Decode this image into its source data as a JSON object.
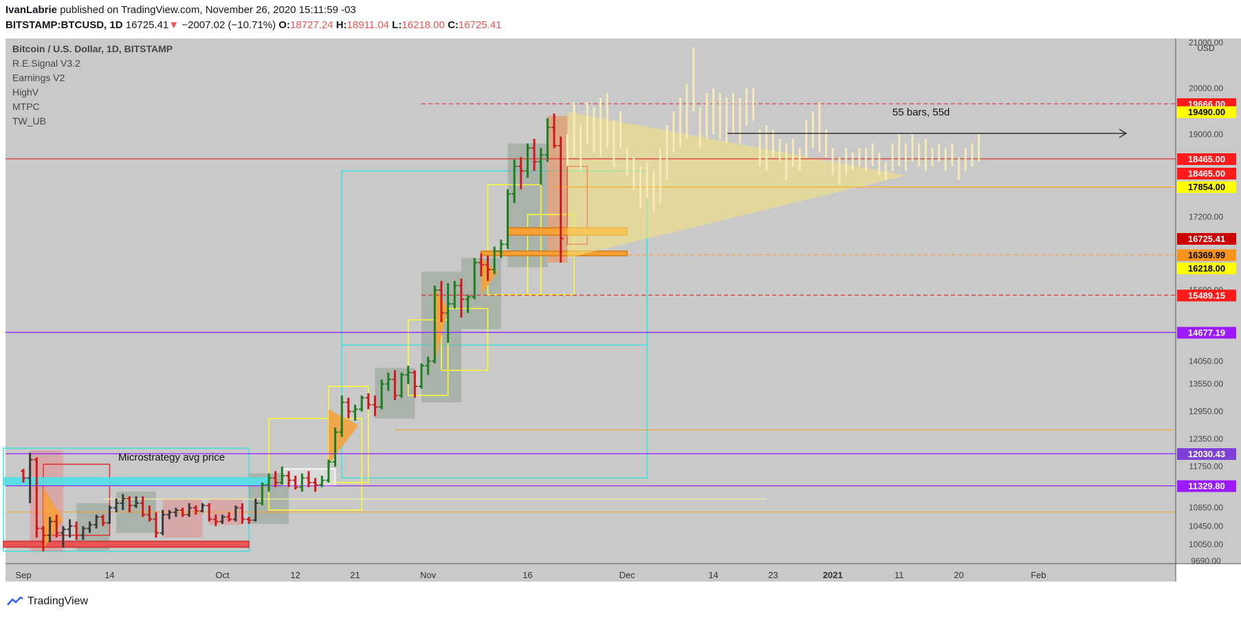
{
  "header": {
    "author": "IvanLabrie",
    "published_text": "published on TradingView.com, November 26, 2020 15:11:59 -03",
    "symbol": "BITSTAMP:BTCUSD, 1D",
    "last": "16725.41",
    "down_arrow": "▼",
    "change": "−2007.02 (−10.71%)",
    "o_label": "O:",
    "o": "18727.24",
    "h_label": "H:",
    "h": "18911.04",
    "l_label": "L:",
    "l": "16218.00",
    "c_label": "C:",
    "c": "16725.41"
  },
  "legend": {
    "title": "Bitcoin / U.S. Dollar, 1D, BITSTAMP",
    "indicators": [
      "R.E.Signal V3.2",
      "Earnings V2",
      "HighV",
      "MTPC",
      "TW_UB"
    ]
  },
  "annotations": {
    "microstrategy": "Microstrategy avg price",
    "projection": "55 bars, 55d"
  },
  "footer": {
    "brand": "TradingView"
  },
  "colors": {
    "background": "#c9c9c9",
    "up": "#1e7d1e",
    "down": "#cc1a1a",
    "neutral": "#3a3a3a",
    "cyan": "#3fe0e0",
    "yellow": "#ffff33",
    "orange": "#f7a035",
    "purple": "#8c1aff",
    "red_line": "#e03030"
  },
  "chart_data": {
    "type": "bar",
    "title": "Bitcoin / U.S. Dollar, 1D, BITSTAMP",
    "currency": "USD",
    "ylim": [
      9690,
      21000
    ],
    "y_ticks": [
      21000,
      20000,
      19000,
      17200,
      15600,
      14050,
      13550,
      12950,
      12350,
      11750,
      10850,
      10450,
      10050,
      9690
    ],
    "y_tick_labels": [
      "21000.00",
      "20000.00",
      "19000.00",
      "17200.00",
      "15600.00",
      "14050.00",
      "13550.00",
      "12950.00",
      "12350.00",
      "11750.00",
      "10850.00",
      "10450.00",
      "10050.00",
      "9690.00"
    ],
    "x_ticks": [
      {
        "label": "Sep",
        "bar": 0
      },
      {
        "label": "14",
        "bar": 13
      },
      {
        "label": "Oct",
        "bar": 30
      },
      {
        "label": "12",
        "bar": 41
      },
      {
        "label": "21",
        "bar": 50
      },
      {
        "label": "Nov",
        "bar": 61
      },
      {
        "label": "16",
        "bar": 76
      },
      {
        "label": "Dec",
        "bar": 91
      },
      {
        "label": "14",
        "bar": 104
      },
      {
        "label": "23",
        "bar": 113
      },
      {
        "label": "2021",
        "bar": 122
      },
      {
        "label": "11",
        "bar": 132
      },
      {
        "label": "20",
        "bar": 141
      },
      {
        "label": "Feb",
        "bar": 153
      }
    ],
    "price_labels": [
      {
        "value": "19666.00",
        "price": 19666,
        "bg": "#ff1a1a",
        "fg": "#ffffff"
      },
      {
        "value": "19490.00",
        "price": 19490,
        "bg": "#ffff00",
        "fg": "#000000"
      },
      {
        "value": "18465.00",
        "price": 18465,
        "bg": "#ff1a1a",
        "fg": "#ffffff"
      },
      {
        "value": "18465.00",
        "price": 18150,
        "bg": "#ff1a1a",
        "fg": "#ffffff"
      },
      {
        "value": "17854.00",
        "price": 17854,
        "bg": "#ffff00",
        "fg": "#000000"
      },
      {
        "value": "16725.41",
        "price": 16725,
        "bg": "#cc0000",
        "fg": "#ffffff"
      },
      {
        "value": "16369.99",
        "price": 16370,
        "bg": "#f7941d",
        "fg": "#000000"
      },
      {
        "value": "16218.00",
        "price": 16080,
        "bg": "#ffff00",
        "fg": "#000000"
      },
      {
        "value": "15489.15",
        "price": 15489,
        "bg": "#ff1a1a",
        "fg": "#ffffff"
      },
      {
        "value": "14677.19",
        "price": 14677,
        "bg": "#9b1aff",
        "fg": "#ffffff"
      },
      {
        "value": "12030.43",
        "price": 12030,
        "bg": "#7e3fd6",
        "fg": "#ffffff"
      },
      {
        "value": "11329.80",
        "price": 11330,
        "bg": "#9b1aff",
        "fg": "#ffffff"
      }
    ],
    "hlines": [
      {
        "price": 19666,
        "color": "#e03030",
        "dash": true,
        "from": 60
      },
      {
        "price": 18465,
        "color": "#e03030",
        "dash": false,
        "from": 0
      },
      {
        "price": 17854,
        "color": "#ffff33",
        "dash": false,
        "from": 80
      },
      {
        "price": 16369.99,
        "color": "#f7a035",
        "dash": true,
        "from": 86
      },
      {
        "price": 15489.15,
        "color": "#e03030",
        "dash": true,
        "from": 60
      },
      {
        "price": 14677.19,
        "color": "#8c1aff",
        "dash": false,
        "from": 0
      },
      {
        "price": 12030.43,
        "color": "#8c1aff",
        "dash": false,
        "from": 0
      },
      {
        "price": 11329.8,
        "color": "#8c1aff",
        "dash": false,
        "from": 0
      },
      {
        "price": 12550,
        "color": "#f7a035",
        "dash": false,
        "from": 56
      },
      {
        "price": 10760,
        "color": "#f7a035",
        "dash": false,
        "from": 0
      }
    ],
    "ohlc": [
      [
        11650,
        11700,
        11400,
        11500
      ],
      [
        11500,
        12050,
        10950,
        11900
      ],
      [
        11900,
        11950,
        10200,
        10400
      ],
      [
        10400,
        10450,
        9900,
        10250
      ],
      [
        10250,
        10650,
        10100,
        10550
      ],
      [
        10550,
        10700,
        10200,
        10300
      ],
      [
        10300,
        10450,
        9980,
        10380
      ],
      [
        10380,
        10600,
        10200,
        10450
      ],
      [
        10450,
        10550,
        10150,
        10250
      ],
      [
        10250,
        10450,
        10150,
        10400
      ],
      [
        10400,
        10550,
        10300,
        10480
      ],
      [
        10480,
        10700,
        10400,
        10650
      ],
      [
        10650,
        10700,
        10450,
        10520
      ],
      [
        10520,
        10900,
        10500,
        10850
      ],
      [
        10850,
        11050,
        10750,
        10950
      ],
      [
        10950,
        11150,
        10800,
        11050
      ],
      [
        11050,
        11100,
        10750,
        10900
      ],
      [
        10900,
        11100,
        10850,
        10950
      ],
      [
        10950,
        11100,
        10650,
        10700
      ],
      [
        10700,
        10900,
        10550,
        10600
      ],
      [
        10600,
        10750,
        10200,
        10300
      ],
      [
        10300,
        10800,
        10250,
        10700
      ],
      [
        10700,
        10800,
        10600,
        10750
      ],
      [
        10750,
        10850,
        10650,
        10800
      ],
      [
        10800,
        10850,
        10650,
        10700
      ],
      [
        10700,
        10950,
        10650,
        10850
      ],
      [
        10850,
        10900,
        10700,
        10780
      ],
      [
        10780,
        10950,
        10750,
        10900
      ],
      [
        10900,
        10950,
        10550,
        10600
      ],
      [
        10600,
        10700,
        10450,
        10550
      ],
      [
        10550,
        10700,
        10500,
        10650
      ],
      [
        10650,
        10750,
        10550,
        10600
      ],
      [
        10600,
        10900,
        10550,
        10850
      ],
      [
        10850,
        10950,
        10500,
        10600
      ],
      [
        10600,
        10650,
        10500,
        10580
      ],
      [
        10580,
        11050,
        10550,
        10950
      ],
      [
        10950,
        11400,
        10900,
        11350
      ],
      [
        11350,
        11600,
        11200,
        11500
      ],
      [
        11500,
        11650,
        11300,
        11400
      ],
      [
        11400,
        11750,
        11350,
        11550
      ],
      [
        11550,
        11650,
        11300,
        11450
      ],
      [
        11450,
        11550,
        11250,
        11300
      ],
      [
        11300,
        11600,
        11200,
        11500
      ],
      [
        11500,
        11650,
        11300,
        11400
      ],
      [
        11400,
        11500,
        11200,
        11350
      ],
      [
        11350,
        11550,
        11300,
        11450
      ],
      [
        11450,
        11900,
        11400,
        11850
      ],
      [
        11850,
        12600,
        11750,
        12500
      ],
      [
        12500,
        13300,
        12400,
        13150
      ],
      [
        13150,
        13250,
        12800,
        12950
      ],
      [
        12950,
        13100,
        12750,
        13000
      ],
      [
        13000,
        13300,
        12950,
        13250
      ],
      [
        13250,
        13350,
        13000,
        13100
      ],
      [
        13100,
        13300,
        12850,
        13050
      ],
      [
        13050,
        13650,
        13000,
        13550
      ],
      [
        13550,
        13800,
        13400,
        13650
      ],
      [
        13650,
        13850,
        13200,
        13300
      ],
      [
        13300,
        13800,
        13250,
        13750
      ],
      [
        13750,
        13950,
        13550,
        13800
      ],
      [
        13800,
        13850,
        13250,
        13500
      ],
      [
        13500,
        14000,
        13450,
        13950
      ],
      [
        13950,
        14150,
        13750,
        14050
      ],
      [
        14050,
        15700,
        14000,
        15600
      ],
      [
        15600,
        15800,
        14900,
        15100
      ],
      [
        15100,
        15750,
        14450,
        15300
      ],
      [
        15300,
        15800,
        15200,
        15700
      ],
      [
        15700,
        15850,
        15000,
        15400
      ],
      [
        15400,
        15500,
        15100,
        15450
      ],
      [
        15450,
        16300,
        15400,
        16200
      ],
      [
        16200,
        16400,
        15900,
        16150
      ],
      [
        16150,
        16350,
        15800,
        16050
      ],
      [
        16050,
        16550,
        15950,
        16450
      ],
      [
        16450,
        16700,
        16300,
        16600
      ],
      [
        16600,
        17800,
        16500,
        17700
      ],
      [
        17700,
        18450,
        17500,
        18300
      ],
      [
        18300,
        18500,
        17800,
        18200
      ],
      [
        18200,
        18800,
        18050,
        18700
      ],
      [
        18700,
        18900,
        18200,
        18400
      ],
      [
        18400,
        18700,
        17900,
        18550
      ],
      [
        18550,
        19350,
        18400,
        19150
      ],
      [
        19150,
        19450,
        18700,
        18750
      ],
      [
        18750,
        18950,
        16200,
        16725
      ]
    ],
    "ghost_bars": [
      [
        18300,
        19000
      ],
      [
        18500,
        19700
      ],
      [
        18200,
        19200
      ],
      [
        18800,
        19700
      ],
      [
        18600,
        19600
      ],
      [
        18500,
        19800
      ],
      [
        18700,
        19900
      ],
      [
        18300,
        19300
      ],
      [
        18700,
        19500
      ],
      [
        18100,
        18700
      ],
      [
        17800,
        18500
      ],
      [
        17400,
        18300
      ],
      [
        17600,
        18400
      ],
      [
        17300,
        18200
      ],
      [
        17500,
        18700
      ],
      [
        18000,
        19200
      ],
      [
        18600,
        19500
      ],
      [
        18700,
        19800
      ],
      [
        18900,
        20100
      ],
      [
        19500,
        20900
      ],
      [
        18700,
        19600
      ],
      [
        18900,
        19900
      ],
      [
        19000,
        20000
      ],
      [
        18900,
        19900
      ],
      [
        18800,
        19800
      ],
      [
        19000,
        19900
      ],
      [
        18800,
        19800
      ],
      [
        19200,
        20000
      ],
      [
        19300,
        20000
      ],
      [
        18300,
        19100
      ],
      [
        18200,
        19200
      ],
      [
        18500,
        19100
      ],
      [
        18400,
        18900
      ],
      [
        18000,
        18800
      ],
      [
        18300,
        18900
      ],
      [
        18200,
        18700
      ],
      [
        18500,
        19300
      ],
      [
        18700,
        19500
      ],
      [
        18600,
        19700
      ],
      [
        18500,
        19100
      ],
      [
        18100,
        18700
      ],
      [
        17900,
        18500
      ],
      [
        18100,
        18700
      ],
      [
        18200,
        18600
      ],
      [
        18300,
        18700
      ],
      [
        18200,
        18700
      ],
      [
        18300,
        18800
      ],
      [
        18100,
        18600
      ],
      [
        18000,
        18400
      ],
      [
        18200,
        18800
      ],
      [
        18300,
        19000
      ],
      [
        18200,
        18800
      ],
      [
        18400,
        19000
      ],
      [
        18300,
        18800
      ],
      [
        18200,
        18900
      ],
      [
        18300,
        18700
      ],
      [
        18400,
        18800
      ],
      [
        18200,
        18700
      ],
      [
        18300,
        18800
      ],
      [
        18000,
        18500
      ],
      [
        18200,
        18700
      ],
      [
        18300,
        18800
      ],
      [
        18400,
        19000
      ]
    ]
  }
}
